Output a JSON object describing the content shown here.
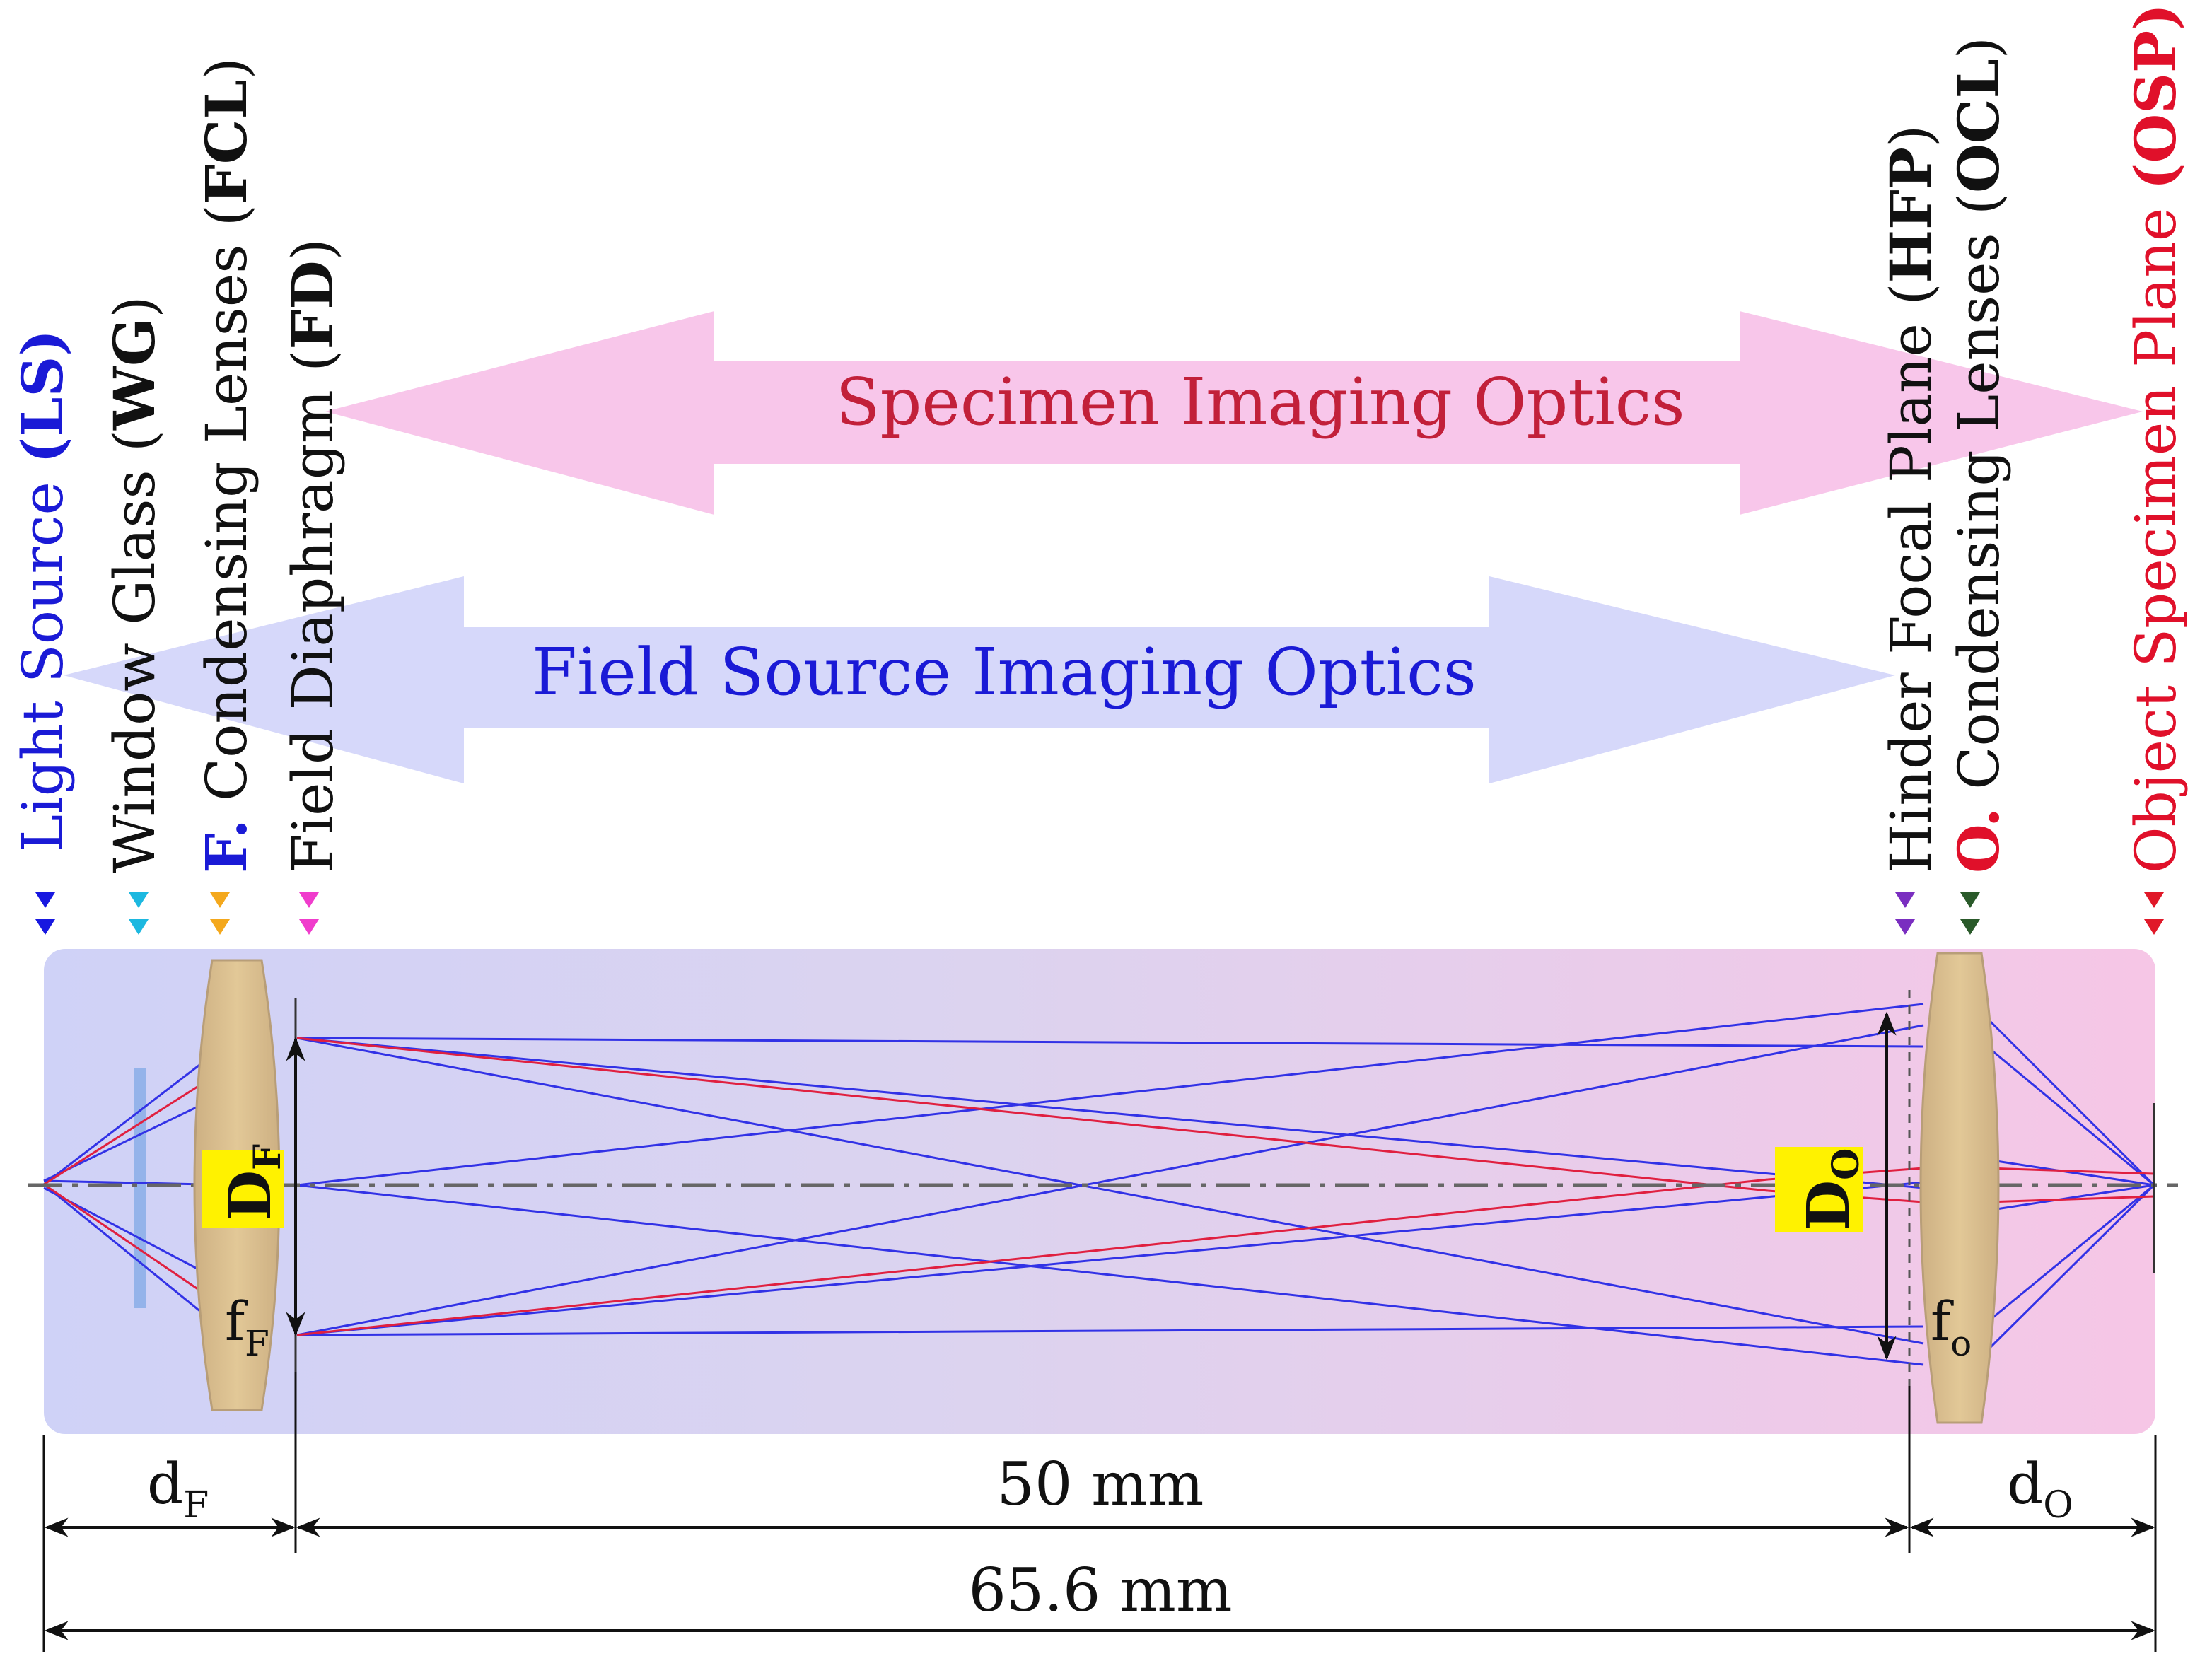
{
  "colors": {
    "blue_label": "#1a1ad6",
    "red_label": "#e0102a",
    "black": "#111111",
    "pink_arrow": "#f8c6ea",
    "blue_arrow": "#d6d8fa",
    "panel_left": "#cfd2f7",
    "panel_right": "#f6c6e6",
    "lens_fill": "#d8bc8e",
    "yellow_box": "#fff200",
    "ray_blue": "#3232e6",
    "ray_red": "#e02040",
    "marker_ls": "#1818e0",
    "marker_wg": "#1cb8e0",
    "marker_fcl": "#f4a81c",
    "marker_fd": "#f03ccc",
    "marker_hfp": "#7a2ec0",
    "marker_ocl": "#2a5a2a",
    "marker_osp": "#e01828"
  },
  "components": {
    "ls": {
      "label": "Light Source ",
      "abbr": "(LS)"
    },
    "wg": {
      "label": "Window Glass (",
      "abbr": "WG",
      "close": ")"
    },
    "fcl": {
      "prefix": "F.",
      "label": " Condensing Lenses (",
      "abbr": "FCL",
      "close": ")"
    },
    "fd": {
      "label": "Field Diaphragm (",
      "abbr": "FD",
      "close": ")"
    },
    "hfp": {
      "label": "Hinder Focal Plane (",
      "abbr": "HFP",
      "close": ")"
    },
    "ocl": {
      "prefix": "O.",
      "label": " Condensing Lenses (",
      "abbr": "OCL",
      "close": ")"
    },
    "osp": {
      "label": "Object Specimen Plane ",
      "abbr": "(OSP)"
    }
  },
  "arrows": {
    "specimen": "Specimen Imaging Optics",
    "field": "Field Source Imaging Optics"
  },
  "lens_labels": {
    "df_main": "D",
    "df_sub": "F",
    "ff_main": "f",
    "ff_sub": "F",
    "do_main": "D",
    "do_sub": "O",
    "fo_main": "f",
    "fo_sub": "o"
  },
  "dimensions": {
    "df_main": "d",
    "df_sub": "F",
    "mid": "50 mm",
    "do_main": "d",
    "do_sub": "O",
    "total": "65.6 mm"
  }
}
